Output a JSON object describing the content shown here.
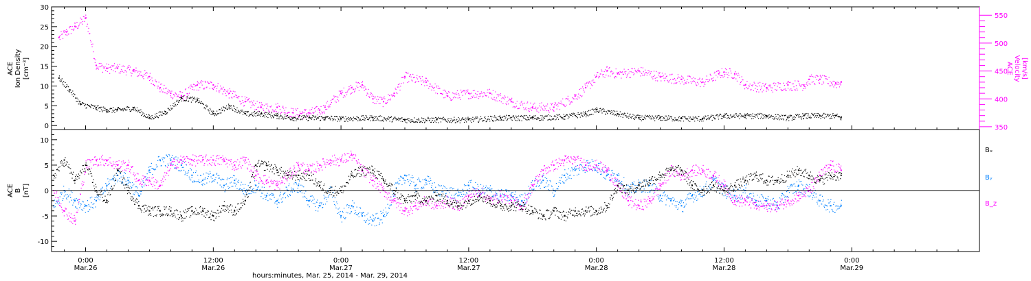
{
  "colors": {
    "axes": "#000000",
    "density": "#000000",
    "velocity": "#ff00ff",
    "bx": "#000000",
    "by": "#0080ff",
    "bz": "#ff00ff"
  },
  "x_axis": {
    "title": "hours:minutes, Mar. 25, 2014 - Mar. 29, 2014",
    "range_hours": [
      -3.2,
      84
    ],
    "ticks": [
      {
        "hour": 0,
        "time": "0:00",
        "date": "Mar.26"
      },
      {
        "hour": 12,
        "time": "12:00",
        "date": "Mar.26"
      },
      {
        "hour": 24,
        "time": "0:00",
        "date": "Mar.27"
      },
      {
        "hour": 36,
        "time": "12:00",
        "date": "Mar.27"
      },
      {
        "hour": 48,
        "time": "0:00",
        "date": "Mar.28"
      },
      {
        "hour": 60,
        "time": "12:00",
        "date": "Mar.28"
      },
      {
        "hour": 72,
        "time": "0:00",
        "date": "Mar.29"
      }
    ]
  },
  "chart_data": [
    {
      "type": "scatter",
      "panel": "top",
      "left_axis": {
        "label_lines": [
          "ACE",
          "Ion Density",
          "[cm⁻³]"
        ],
        "range": [
          -1,
          30
        ],
        "ticks": [
          0,
          5,
          10,
          15,
          20,
          25,
          30
        ]
      },
      "right_axis": {
        "label_lines": [
          "ACE",
          "Velocity",
          "[km/s]"
        ],
        "range": [
          345,
          565
        ],
        "ticks": [
          350,
          400,
          450,
          500,
          550
        ]
      },
      "series": [
        {
          "axis": "left",
          "x_hours": [
            -2.5,
            -1.5,
            -0.5,
            1,
            2,
            3,
            4.5,
            6,
            7.5,
            9,
            10.5,
            12,
            13.5,
            15,
            16.5,
            18,
            19.5,
            21,
            22.5,
            24,
            27,
            30,
            33,
            36,
            39,
            42,
            45,
            47,
            48,
            50,
            52,
            54,
            56,
            58,
            60,
            62,
            64,
            66,
            67.5,
            69,
            70.5,
            71
          ],
          "values": [
            12,
            9,
            5.5,
            4.5,
            4,
            4,
            4.5,
            2,
            3.5,
            7,
            6.5,
            3,
            5,
            3,
            3,
            2.5,
            2,
            2,
            2,
            1.8,
            2,
            1.5,
            1.5,
            1.5,
            2,
            2,
            2.3,
            3,
            4,
            3,
            2,
            2,
            1.8,
            1.8,
            2.5,
            2.5,
            2.5,
            2,
            2.5,
            2.5,
            2.5,
            2
          ]
        },
        {
          "axis": "right",
          "x_hours": [
            -2.5,
            -1.8,
            -1,
            0,
            1,
            2,
            3,
            4.5,
            6,
            7,
            8,
            9,
            10.5,
            12,
            13.5,
            15,
            16.5,
            18,
            19.5,
            21,
            22,
            22.5,
            24,
            25,
            26,
            27,
            28,
            29,
            30,
            32,
            34,
            36,
            38,
            40,
            42,
            44,
            46,
            47,
            48,
            49,
            50,
            52,
            54,
            56,
            58,
            59.5,
            60,
            61,
            62,
            64,
            66,
            67.5,
            68,
            69,
            70.5,
            71
          ],
          "values": [
            510,
            520,
            530,
            545,
            460,
            455,
            455,
            450,
            440,
            420,
            410,
            405,
            425,
            425,
            410,
            395,
            385,
            385,
            375,
            375,
            380,
            385,
            410,
            420,
            425,
            400,
            395,
            410,
            440,
            430,
            405,
            410,
            410,
            395,
            385,
            385,
            405,
            420,
            440,
            450,
            445,
            450,
            440,
            435,
            430,
            445,
            448,
            445,
            425,
            420,
            425,
            425,
            435,
            435,
            428,
            430
          ]
        }
      ]
    },
    {
      "type": "scatter",
      "panel": "bottom",
      "left_axis": {
        "label_lines": [
          "ACE",
          "B",
          "[nT]"
        ],
        "range": [
          -12,
          12
        ],
        "ticks": [
          -10,
          -5,
          0,
          5,
          10
        ]
      },
      "zero_line": true,
      "legend": [
        "Bₓ",
        "Bᵧ",
        "B_z"
      ],
      "series": [
        {
          "name": "Bₓ",
          "x_hours": [
            -3,
            -2,
            -1,
            0,
            1,
            2,
            3,
            4,
            5,
            6,
            7,
            8,
            9,
            10,
            11,
            12,
            13,
            14,
            15,
            16,
            17,
            18,
            19,
            20,
            21,
            22,
            23,
            24,
            25,
            26,
            27,
            28,
            29,
            30,
            31,
            32,
            33,
            34,
            35,
            36,
            37,
            38,
            39,
            40,
            41,
            42,
            43,
            44,
            45,
            46,
            47,
            48,
            49,
            50,
            51,
            52,
            53,
            54,
            55,
            56,
            57,
            58,
            59,
            60,
            61,
            62,
            63,
            64,
            65,
            66,
            67,
            68,
            69,
            70,
            71
          ],
          "values": [
            3,
            6,
            2,
            5,
            0,
            -2,
            4,
            0,
            -3,
            -4,
            -4,
            -4,
            -5,
            -4,
            -4,
            -5,
            -3,
            -4,
            -2,
            5,
            5,
            4,
            3,
            3,
            3,
            1,
            0,
            0,
            3,
            4,
            4,
            2,
            0,
            -2,
            -1,
            -2,
            -1,
            -2,
            -3,
            -2,
            -1,
            -2,
            -3,
            -3,
            -3,
            -4,
            -5,
            -4,
            -5,
            -4,
            -4,
            -4,
            -3,
            1,
            0,
            1,
            2,
            3,
            4,
            4,
            1,
            0,
            1,
            0,
            1,
            2,
            3,
            2,
            2,
            3,
            4,
            3,
            2,
            3,
            3
          ]
        },
        {
          "name": "Bᵧ",
          "x_hours": [
            -3,
            -2,
            -1,
            0,
            1,
            2,
            3,
            4,
            5,
            6,
            7,
            8,
            9,
            10,
            11,
            12,
            13,
            14,
            15,
            16,
            17,
            18,
            19,
            20,
            21,
            22,
            23,
            24,
            25,
            26,
            27,
            28,
            29,
            30,
            31,
            32,
            33,
            34,
            35,
            36,
            37,
            38,
            39,
            40,
            41,
            42,
            43,
            44,
            45,
            46,
            47,
            48,
            49,
            50,
            51,
            52,
            53,
            54,
            55,
            56,
            57,
            58,
            59,
            60,
            61,
            62,
            63,
            64,
            65,
            66,
            67,
            68,
            69,
            70,
            71
          ],
          "values": [
            -3,
            0,
            -2,
            -3,
            -2,
            1,
            3,
            2,
            -1,
            4,
            6,
            6,
            5,
            3,
            2,
            3,
            1,
            2,
            0,
            1,
            -1,
            -2,
            0,
            1,
            -2,
            -3,
            0,
            -5,
            -3,
            -5,
            -6,
            -5,
            0,
            3,
            1,
            2,
            0,
            0,
            -1,
            1,
            0,
            0,
            -1,
            -1,
            -2,
            1,
            2,
            0,
            3,
            4,
            5,
            5,
            3,
            3,
            0,
            1,
            1,
            -1,
            -2,
            -3,
            -1,
            0,
            2,
            0,
            -1,
            0,
            -2,
            -2,
            -3,
            0,
            1,
            0,
            -2,
            -3,
            -3
          ]
        },
        {
          "name": "B_z",
          "x_hours": [
            -3,
            -2,
            -1,
            0,
            1,
            2,
            3,
            4,
            5,
            6,
            7,
            8,
            9,
            10,
            11,
            12,
            13,
            14,
            15,
            16,
            17,
            18,
            19,
            20,
            21,
            22,
            23,
            24,
            25,
            26,
            27,
            28,
            29,
            30,
            31,
            32,
            33,
            34,
            35,
            36,
            37,
            38,
            39,
            40,
            41,
            42,
            43,
            44,
            45,
            46,
            47,
            48,
            49,
            50,
            51,
            52,
            53,
            54,
            55,
            56,
            57,
            58,
            59,
            60,
            61,
            62,
            63,
            64,
            65,
            66,
            67,
            68,
            69,
            70,
            71
          ],
          "values": [
            0,
            -4,
            -6,
            5,
            6,
            6,
            5,
            5,
            2,
            2,
            1,
            5,
            6,
            6,
            6,
            6,
            6,
            5,
            6,
            3,
            2,
            1,
            3,
            5,
            4,
            5,
            6,
            6,
            7,
            4,
            2,
            0,
            -2,
            -4,
            -3,
            -2,
            -3,
            -2,
            -3,
            -1,
            0,
            -2,
            -1,
            -2,
            -3,
            1,
            4,
            5,
            6,
            6,
            5,
            5,
            4,
            1,
            -2,
            -3,
            -2,
            1,
            4,
            3,
            4,
            4,
            3,
            1,
            -2,
            -2,
            -3,
            -3,
            -3,
            -2,
            -1,
            0,
            3,
            5,
            4
          ]
        }
      ]
    }
  ]
}
